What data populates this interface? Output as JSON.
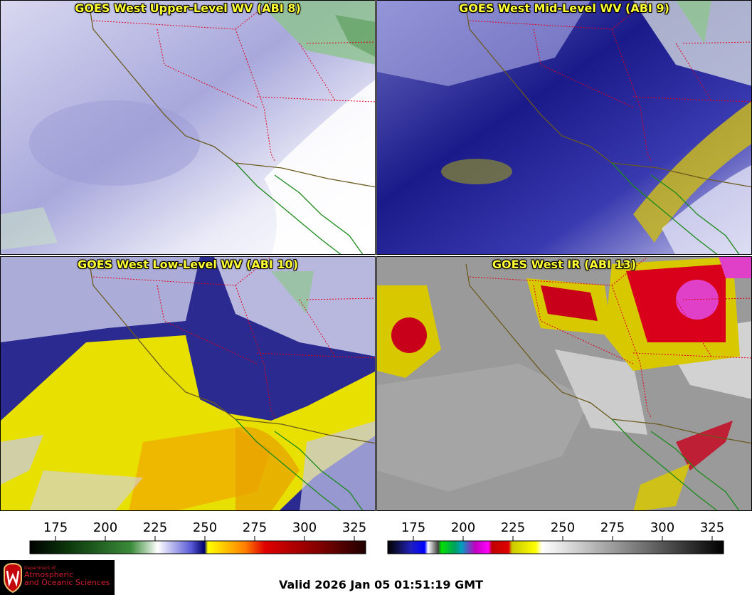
{
  "panels": {
    "upper": {
      "title": "GOES West Upper-Level WV (ABI 8)"
    },
    "mid": {
      "title": "GOES West Mid-Level WV (ABI 9)"
    },
    "low": {
      "title": "GOES West Low-Level WV (ABI 10)"
    },
    "ir": {
      "title": "GOES West IR (ABI 13)"
    }
  },
  "colorbars": {
    "wv": {
      "ticks": [
        "175",
        "200",
        "225",
        "250",
        "275",
        "300",
        "325"
      ]
    },
    "ir": {
      "ticks": [
        "175",
        "200",
        "225",
        "250",
        "275",
        "300",
        "325"
      ]
    }
  },
  "logo": {
    "dept": "Department of",
    "line1": "Atmospheric",
    "line2": "and Oceanic Sciences"
  },
  "footer": {
    "valid": "Valid 2026 Jan 05 01:51:19 GMT"
  },
  "colors": {
    "title_text": "#ffff33",
    "state_borders": "#e0001a",
    "coastline_us": "#6b5a1e",
    "coastline_mexico": "#1a8a1a"
  },
  "icons": {
    "logo": "uw-crest-icon"
  }
}
